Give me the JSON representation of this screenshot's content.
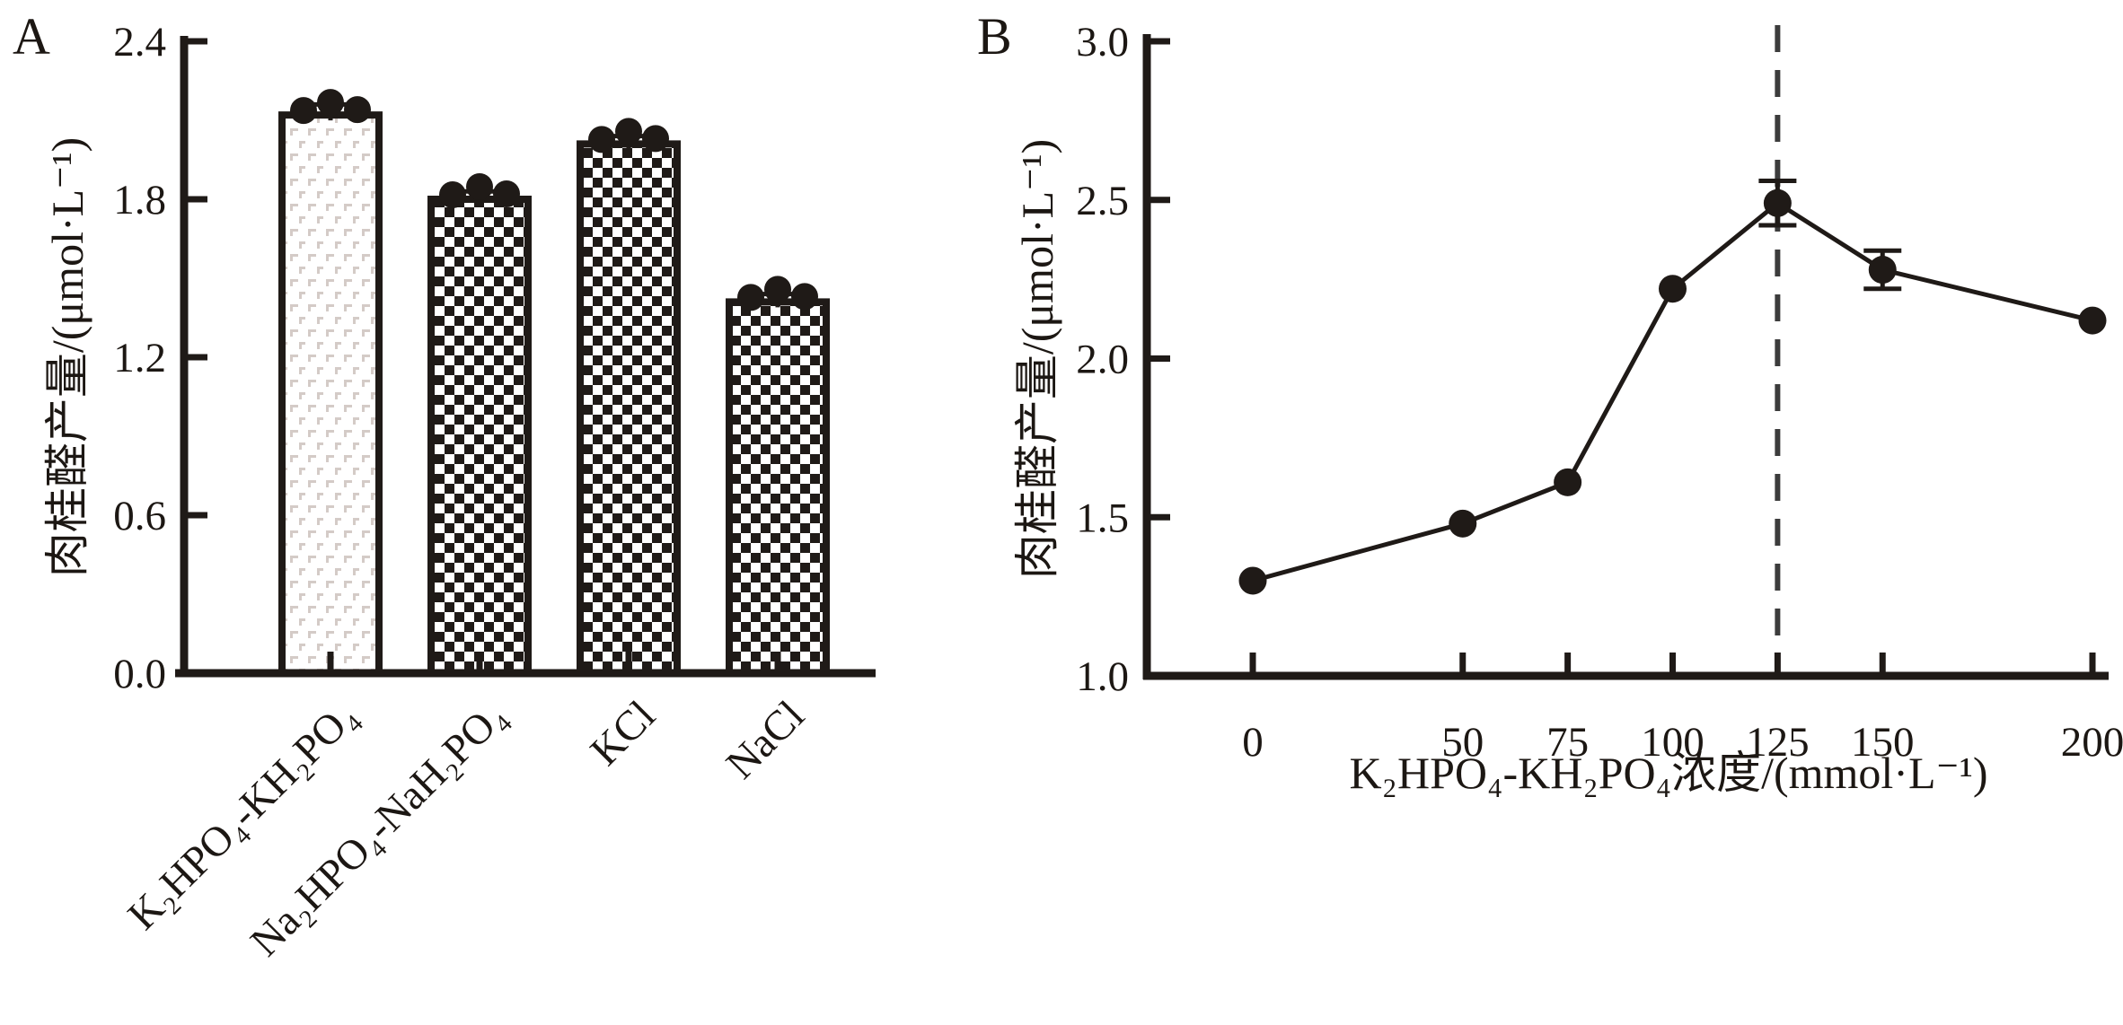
{
  "figure": {
    "background": "#ffffff",
    "panels": [
      {
        "letter": "A"
      },
      {
        "letter": "B"
      }
    ]
  },
  "colors": {
    "ink": "#1f1a17",
    "text": "#1c1713",
    "light_pattern": "#d4cbc7",
    "dashed_line": "#3c3c3c",
    "background": "#ffffff"
  },
  "chart_data": [
    {
      "id": "A",
      "type": "bar",
      "title": "",
      "xlabel": "",
      "ylabel": "肉桂醛产量/(μmol·L⁻¹)",
      "categories": [
        "K₂HPO₄-KH₂PO₄",
        "Na₂HPO₄-NaH₂PO₄",
        "KCl",
        "NaCl"
      ],
      "values": [
        2.12,
        1.8,
        2.01,
        1.41
      ],
      "errors": [
        0.04,
        0.03,
        0.03,
        0.03
      ],
      "replicate_dots_per_bar": 3,
      "bar_patterns": [
        "light-dash",
        "checkerboard",
        "checkerboard",
        "checkerboard"
      ],
      "ylim": [
        0.0,
        2.4
      ],
      "yticks": [
        "0.0",
        "0.6",
        "1.2",
        "1.8",
        "2.4"
      ],
      "grid": false,
      "legend": null,
      "xtick_label_rotation_deg": -45
    },
    {
      "id": "B",
      "type": "line",
      "title": "",
      "xlabel": "K₂HPO₄-KH₂PO₄浓度/(mmol·L⁻¹)",
      "ylabel": "肉桂醛产量/(μmol·L⁻¹)",
      "x": [
        0,
        50,
        75,
        100,
        125,
        150,
        200
      ],
      "y": [
        1.3,
        1.48,
        1.61,
        2.22,
        2.49,
        2.28,
        2.12
      ],
      "errors": [
        0,
        0,
        0,
        0,
        0.07,
        0.06,
        0
      ],
      "xticks": [
        "0",
        "50",
        "75",
        "100",
        "125",
        "150",
        "200"
      ],
      "yticks": [
        "1.0",
        "1.5",
        "2.0",
        "2.5",
        "3.0"
      ],
      "xlim": [
        0,
        200
      ],
      "ylim": [
        1.0,
        3.0
      ],
      "dashed_vertical_line_x": 125,
      "marker": "circle",
      "grid": false,
      "legend": null
    }
  ]
}
